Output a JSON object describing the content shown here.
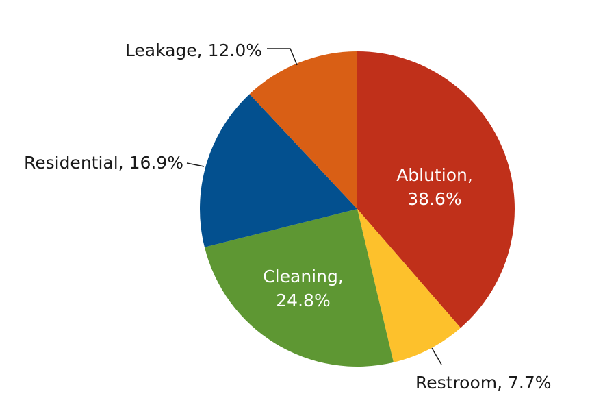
{
  "chart_data": {
    "type": "pie",
    "start_angle": "12 o'clock, clockwise",
    "slices": [
      {
        "label": "Ablution",
        "value": 38.6,
        "text": [
          "Ablution,",
          "38.6%"
        ],
        "color": "#C0301A",
        "placement": "inside"
      },
      {
        "label": "Restroom",
        "value": 7.7,
        "text": [
          "Restroom, 7.7%"
        ],
        "color": "#FDC12C",
        "placement": "outside"
      },
      {
        "label": "Cleaning",
        "value": 24.8,
        "text": [
          "Cleaning,",
          "24.8%"
        ],
        "color": "#5E9733",
        "placement": "inside"
      },
      {
        "label": "Residential",
        "value": 16.9,
        "text": [
          "Residential, 16.9%"
        ],
        "color": "#03508F",
        "placement": "outside"
      },
      {
        "label": "Leakage",
        "value": 12.0,
        "text": [
          "Leakage, 12.0%"
        ],
        "color": "#D95F15",
        "placement": "outside"
      }
    ]
  }
}
